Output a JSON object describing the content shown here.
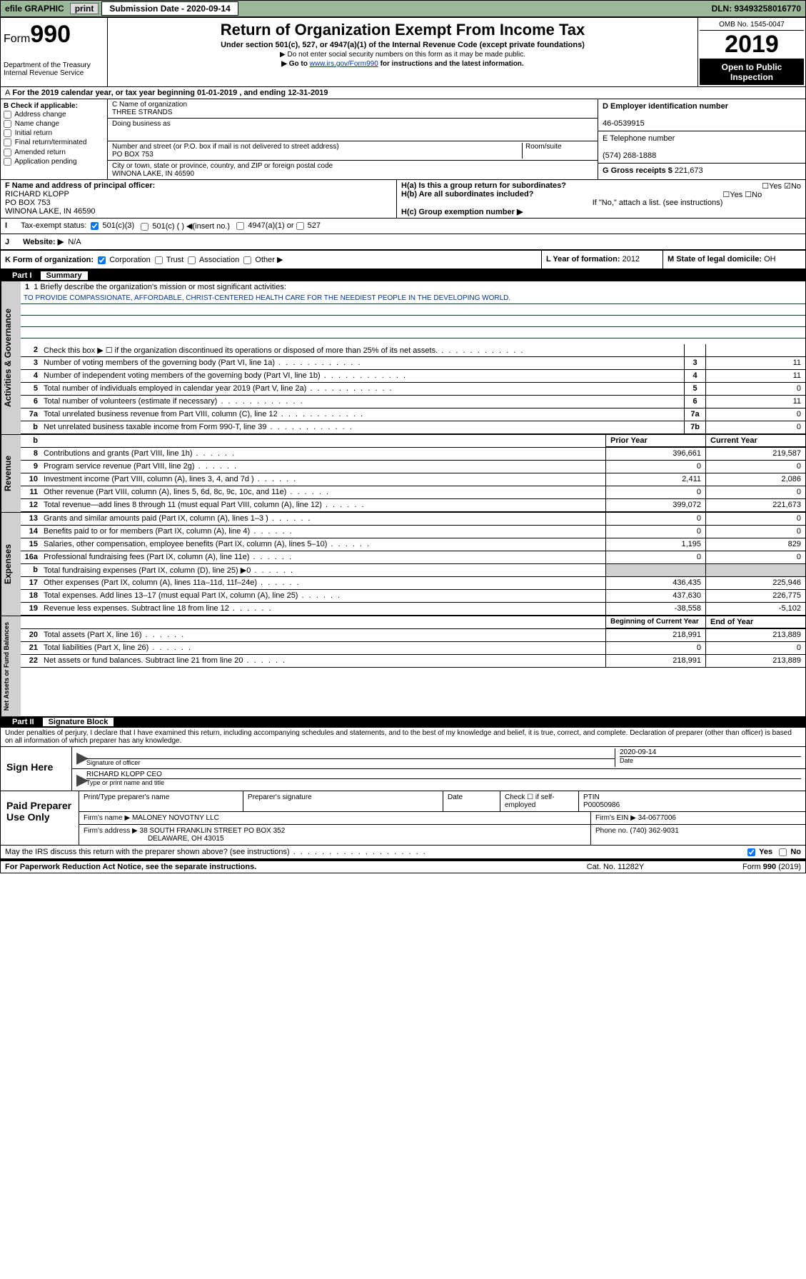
{
  "top": {
    "efile": "efile GRAPHIC",
    "print": "print",
    "sub_label": "Submission Date - ",
    "sub_date": "2020-09-14",
    "dln": "DLN: 93493258016770"
  },
  "header": {
    "form_word": "Form",
    "form_num": "990",
    "dept": "Department of the Treasury\nInternal Revenue Service",
    "title": "Return of Organization Exempt From Income Tax",
    "sub": "Under section 501(c), 527, or 4947(a)(1) of the Internal Revenue Code (except private foundations)",
    "note1": "▶ Do not enter social security numbers on this form as it may be made public.",
    "note2_pre": "▶ Go to ",
    "note2_link": "www.irs.gov/Form990",
    "note2_post": " for instructions and the latest information.",
    "omb": "OMB No. 1545-0047",
    "year": "2019",
    "open": "Open to Public Inspection"
  },
  "period": "For the 2019 calendar year, or tax year beginning 01-01-2019    , and ending 12-31-2019",
  "B": {
    "label": "B Check if applicable:",
    "items": [
      "Address change",
      "Name change",
      "Initial return",
      "Final return/terminated",
      "Amended return",
      "Application pending"
    ]
  },
  "C": {
    "name_lbl": "C Name of organization",
    "name": "THREE STRANDS",
    "dba_lbl": "Doing business as",
    "addr_lbl": "Number and street (or P.O. box if mail is not delivered to street address)",
    "room_lbl": "Room/suite",
    "addr": "PO BOX 753",
    "city_lbl": "City or town, state or province, country, and ZIP or foreign postal code",
    "city": "WINONA LAKE, IN  46590"
  },
  "D": {
    "lbl": "D Employer identification number",
    "val": "46-0539915"
  },
  "E": {
    "lbl": "E Telephone number",
    "val": "(574) 268-1888"
  },
  "G": {
    "lbl": "G Gross receipts $",
    "val": "221,673"
  },
  "F": {
    "lbl": "F  Name and address of principal officer:",
    "name": "RICHARD KLOPP",
    "addr1": "PO BOX 753",
    "addr2": "WINONA LAKE, IN  46590"
  },
  "H": {
    "a": "H(a)  Is this a group return for subordinates?",
    "b": "H(b)  Are all subordinates included?",
    "b_note": "If \"No,\" attach a list. (see instructions)",
    "c": "H(c)  Group exemption number ▶",
    "yes": "Yes",
    "no": "No"
  },
  "I": {
    "lbl": "Tax-exempt status:",
    "opts": [
      "501(c)(3)",
      "501(c) (  ) ◀(insert no.)",
      "4947(a)(1) or",
      "527"
    ]
  },
  "J": {
    "lbl": "Website: ▶",
    "val": "N/A"
  },
  "K": {
    "lbl": "K Form of organization:",
    "opts": [
      "Corporation",
      "Trust",
      "Association",
      "Other ▶"
    ]
  },
  "L": {
    "lbl": "L Year of formation:",
    "val": "2012"
  },
  "M": {
    "lbl": "M State of legal domicile:",
    "val": "OH"
  },
  "part1": {
    "num": "Part I",
    "title": "Summary"
  },
  "mission": {
    "q": "1  Briefly describe the organization's mission or most significant activities:",
    "txt": "TO PROVIDE COMPASSIONATE, AFFORDABLE, CHRIST-CENTERED HEALTH CARE FOR THE NEEDIEST PEOPLE IN THE DEVELOPING WORLD."
  },
  "lines_gov": [
    {
      "n": "2",
      "t": "Check this box ▶ ☐  if the organization discontinued its operations or disposed of more than 25% of its net assets.",
      "box": "",
      "v": ""
    },
    {
      "n": "3",
      "t": "Number of voting members of the governing body (Part VI, line 1a)",
      "box": "3",
      "v": "11"
    },
    {
      "n": "4",
      "t": "Number of independent voting members of the governing body (Part VI, line 1b)",
      "box": "4",
      "v": "11"
    },
    {
      "n": "5",
      "t": "Total number of individuals employed in calendar year 2019 (Part V, line 2a)",
      "box": "5",
      "v": "0"
    },
    {
      "n": "6",
      "t": "Total number of volunteers (estimate if necessary)",
      "box": "6",
      "v": "11"
    },
    {
      "n": "7a",
      "t": "Total unrelated business revenue from Part VIII, column (C), line 12",
      "box": "7a",
      "v": "0"
    },
    {
      "n": "b",
      "t": "Net unrelated business taxable income from Form 990-T, line 39",
      "box": "7b",
      "v": "0"
    }
  ],
  "col_hdr": {
    "prior": "Prior Year",
    "current": "Current Year"
  },
  "lines_rev": [
    {
      "n": "8",
      "t": "Contributions and grants (Part VIII, line 1h)",
      "p": "396,661",
      "c": "219,587"
    },
    {
      "n": "9",
      "t": "Program service revenue (Part VIII, line 2g)",
      "p": "0",
      "c": "0"
    },
    {
      "n": "10",
      "t": "Investment income (Part VIII, column (A), lines 3, 4, and 7d )",
      "p": "2,411",
      "c": "2,086"
    },
    {
      "n": "11",
      "t": "Other revenue (Part VIII, column (A), lines 5, 6d, 8c, 9c, 10c, and 11e)",
      "p": "0",
      "c": "0"
    },
    {
      "n": "12",
      "t": "Total revenue—add lines 8 through 11 (must equal Part VIII, column (A), line 12)",
      "p": "399,072",
      "c": "221,673"
    }
  ],
  "lines_exp": [
    {
      "n": "13",
      "t": "Grants and similar amounts paid (Part IX, column (A), lines 1–3 )",
      "p": "0",
      "c": "0"
    },
    {
      "n": "14",
      "t": "Benefits paid to or for members (Part IX, column (A), line 4)",
      "p": "0",
      "c": "0"
    },
    {
      "n": "15",
      "t": "Salaries, other compensation, employee benefits (Part IX, column (A), lines 5–10)",
      "p": "1,195",
      "c": "829"
    },
    {
      "n": "16a",
      "t": "Professional fundraising fees (Part IX, column (A), line 11e)",
      "p": "0",
      "c": "0"
    },
    {
      "n": "b",
      "t": "Total fundraising expenses (Part IX, column (D), line 25) ▶0",
      "p": "",
      "c": "",
      "shade": true
    },
    {
      "n": "17",
      "t": "Other expenses (Part IX, column (A), lines 11a–11d, 11f–24e)",
      "p": "436,435",
      "c": "225,946"
    },
    {
      "n": "18",
      "t": "Total expenses. Add lines 13–17 (must equal Part IX, column (A), line 25)",
      "p": "437,630",
      "c": "226,775"
    },
    {
      "n": "19",
      "t": "Revenue less expenses. Subtract line 18 from line 12",
      "p": "-38,558",
      "c": "-5,102"
    }
  ],
  "col_hdr2": {
    "begin": "Beginning of Current Year",
    "end": "End of Year"
  },
  "lines_net": [
    {
      "n": "20",
      "t": "Total assets (Part X, line 16)",
      "p": "218,991",
      "c": "213,889"
    },
    {
      "n": "21",
      "t": "Total liabilities (Part X, line 26)",
      "p": "0",
      "c": "0"
    },
    {
      "n": "22",
      "t": "Net assets or fund balances. Subtract line 21 from line 20",
      "p": "218,991",
      "c": "213,889"
    }
  ],
  "part2": {
    "num": "Part II",
    "title": "Signature Block"
  },
  "penalty": "Under penalties of perjury, I declare that I have examined this return, including accompanying schedules and statements, and to the best of my knowledge and belief, it is true, correct, and complete. Declaration of preparer (other than officer) is based on all information of which preparer has any knowledge.",
  "sign": {
    "here": "Sign Here",
    "sig_lbl": "Signature of officer",
    "date_lbl": "Date",
    "date": "2020-09-14",
    "name_lbl": "Type or print name and title",
    "name": "RICHARD KLOPP  CEO"
  },
  "paid": {
    "title": "Paid Preparer Use Only",
    "h1": "Print/Type preparer's name",
    "h2": "Preparer's signature",
    "h3": "Date",
    "h4_lbl": "Check ☐ if self-employed",
    "h5_lbl": "PTIN",
    "ptin": "P00050986",
    "firm_lbl": "Firm's name   ▶",
    "firm": "MALONEY NOVOTNY LLC",
    "ein_lbl": "Firm's EIN ▶",
    "ein": "34-0677006",
    "addr_lbl": "Firm's address ▶",
    "addr1": "38 SOUTH FRANKLIN STREET PO BOX 352",
    "addr2": "DELAWARE, OH  43015",
    "phone_lbl": "Phone no.",
    "phone": "(740) 362-9031"
  },
  "discuss": "May the IRS discuss this return with the preparer shown above? (see instructions)",
  "footer": {
    "pra": "For Paperwork Reduction Act Notice, see the separate instructions.",
    "cat": "Cat. No. 11282Y",
    "form": "Form 990 (2019)"
  },
  "side": {
    "gov": "Activities & Governance",
    "rev": "Revenue",
    "exp": "Expenses",
    "net": "Net Assets or Fund Balances"
  }
}
